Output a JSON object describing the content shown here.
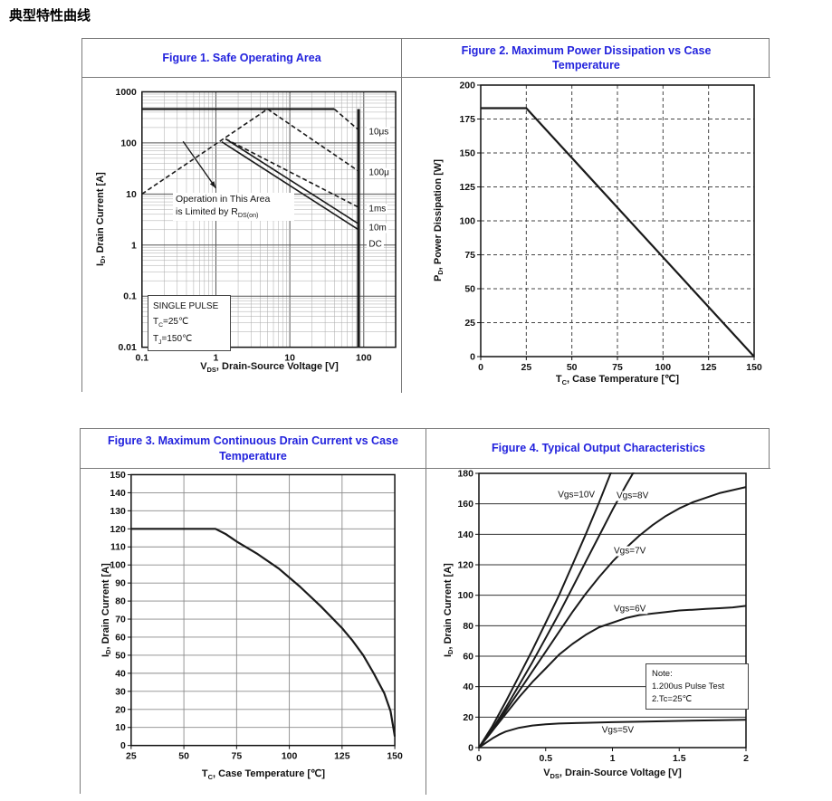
{
  "page": {
    "heading": "典型特性曲线"
  },
  "colors": {
    "title_blue": "#2222DD",
    "curve": "#1a1a1a",
    "grid_minor": "#aaaaaa",
    "grid_major": "#555555",
    "border": "#7a7a7a"
  },
  "chart_data": [
    {
      "id": "figure-1",
      "type": "line",
      "title": "Figure 1. Safe Operating Area",
      "x_axis": {
        "pre": "V",
        "sub": "DS",
        "post": ", Drain-Source Voltage [V]",
        "scale": "log",
        "min": 0.1,
        "max": 270,
        "ticks": [
          "0.1",
          "1",
          "10",
          "100"
        ],
        "grid": "log"
      },
      "y_axis": {
        "pre": "I",
        "sub": "D",
        "post": ", Drain Current [A]",
        "scale": "log",
        "min": 0.01,
        "max": 1000,
        "ticks": [
          "1000",
          "100",
          "10",
          "1",
          "0.1",
          "0.01"
        ],
        "grid": "log"
      },
      "tick_marks": false,
      "series": [
        {
          "name": "rds-on-limit",
          "dash": true,
          "width": 1.6,
          "points": [
            [
              0.1,
              10
            ],
            [
              5,
              460
            ]
          ]
        },
        {
          "name": "current-limit-10us",
          "dash": false,
          "width": 2.2,
          "points": [
            [
              0.1,
              460
            ],
            [
              40,
              460
            ]
          ]
        },
        {
          "name": "10us-pulse",
          "dash": true,
          "width": 1.6,
          "points": [
            [
              40,
              460
            ],
            [
              85,
              180
            ]
          ]
        },
        {
          "name": "100us-pulse",
          "dash": true,
          "width": 1.6,
          "points": [
            [
              5,
              460
            ],
            [
              85,
              28
            ]
          ]
        },
        {
          "name": "1ms-pulse",
          "dash": true,
          "width": 1.6,
          "points": [
            [
              1.35,
              120
            ],
            [
              85,
              5.5
            ]
          ]
        },
        {
          "name": "10ms-pulse",
          "dash": false,
          "width": 1.6,
          "points": [
            [
              1.35,
              120
            ],
            [
              85,
              2.6
            ]
          ]
        },
        {
          "name": "dc",
          "dash": false,
          "width": 1.6,
          "points": [
            [
              1.2,
              105
            ],
            [
              85,
              2.0
            ]
          ]
        },
        {
          "name": "breakdown-85v",
          "dash": false,
          "width": 3,
          "points": [
            [
              85,
              460
            ],
            [
              85,
              0.01
            ]
          ]
        }
      ],
      "curve_labels": [
        {
          "text": "10μs",
          "x": 108,
          "y": 160,
          "anchor": "left"
        },
        {
          "text": "100μ",
          "x": 108,
          "y": 26,
          "anchor": "left"
        },
        {
          "text": "1ms",
          "x": 108,
          "y": 5,
          "anchor": "left"
        },
        {
          "text": "10m",
          "x": 108,
          "y": 2.15,
          "anchor": "left"
        },
        {
          "text": "DC",
          "x": 108,
          "y": 1.05,
          "anchor": "left"
        }
      ],
      "annotations": {
        "operation": {
          "line1": "Operation in This Area",
          "line2_pre": "is Limited by R",
          "line2_sub": "DS(on)"
        },
        "single_pulse": {
          "line1": "SINGLE PULSE",
          "line2_pre": "T",
          "line2_sub": "C",
          "line2_post": "=25℃",
          "line3_pre": "T",
          "line3_sub": "J",
          "line3_post": "=150℃"
        },
        "arrow": {
          "from": [
            0.36,
            107
          ],
          "to": [
            1.0,
            13
          ]
        }
      }
    },
    {
      "id": "figure-2",
      "type": "line",
      "title": "Figure 2. Maximum Power Dissipation vs Case Temperature",
      "x_axis": {
        "pre": "T",
        "sub": "C",
        "post": ", Case Temperature [℃]",
        "scale": "linear",
        "min": 0,
        "max": 150,
        "ticks": [
          "0",
          "25",
          "50",
          "75",
          "100",
          "125",
          "150"
        ],
        "grid": "dashed",
        "grid_color": "#444444"
      },
      "y_axis": {
        "pre": "P",
        "sub": "D",
        "post": ", Power Dissipation [W]",
        "scale": "linear",
        "min": 0,
        "max": 200,
        "ticks": [
          "0",
          "25",
          "50",
          "75",
          "100",
          "125",
          "150",
          "175",
          "200"
        ],
        "grid": "dashed",
        "grid_color": "#444444"
      },
      "series": [
        {
          "name": "max-power-dissipation",
          "dash": false,
          "width": 2.2,
          "points": [
            [
              0,
              183
            ],
            [
              25,
              183
            ],
            [
              150,
              0
            ]
          ]
        }
      ]
    },
    {
      "id": "figure-3",
      "type": "line",
      "title": "Figure 3. Maximum Continuous Drain Current vs Case Temperature",
      "x_axis": {
        "pre": "T",
        "sub": "C",
        "post": ", Case Temperature [℃]",
        "scale": "linear",
        "min": 25,
        "max": 150,
        "ticks": [
          "25",
          "50",
          "75",
          "100",
          "125",
          "150"
        ],
        "grid": "solid",
        "grid_color": "#8a8a8a",
        "grid_width": 0.9
      },
      "y_axis": {
        "pre": "I",
        "sub": "D",
        "post": ", Drain Current [A]",
        "scale": "linear",
        "min": 0,
        "max": 150,
        "ticks": [
          "0",
          "10",
          "20",
          "30",
          "40",
          "50",
          "60",
          "70",
          "80",
          "90",
          "100",
          "110",
          "120",
          "130",
          "140",
          "150"
        ],
        "grid": "solid",
        "grid_color": "#8a8a8a",
        "grid_width": 0.9
      },
      "series": [
        {
          "name": "max-continuous-drain-current",
          "dash": false,
          "width": 2.2,
          "points": [
            [
              25,
              120
            ],
            [
              65,
              120
            ],
            [
              70,
              117
            ],
            [
              75,
              113
            ],
            [
              85,
              106
            ],
            [
              95,
              98
            ],
            [
              105,
              88
            ],
            [
              115,
              77
            ],
            [
              125,
              65
            ],
            [
              130,
              58
            ],
            [
              135,
              50
            ],
            [
              140,
              40
            ],
            [
              145,
              29
            ],
            [
              148,
              19
            ],
            [
              150,
              5
            ]
          ]
        }
      ]
    },
    {
      "id": "figure-4",
      "type": "line",
      "title": "Figure 4. Typical Output Characteristics",
      "x_axis": {
        "pre": "V",
        "sub": "DS",
        "post": ", Drain-Source Voltage [V]",
        "scale": "linear",
        "min": 0,
        "max": 2,
        "ticks": [
          "0",
          "0.5",
          "1",
          "1.5",
          "2"
        ],
        "grid": "none"
      },
      "y_axis": {
        "pre": "I",
        "sub": "D",
        "post": ", Drain Current [A]",
        "scale": "linear",
        "min": 0,
        "max": 180,
        "ticks": [
          "0",
          "20",
          "40",
          "60",
          "80",
          "100",
          "120",
          "140",
          "160",
          "180"
        ],
        "grid": "solid",
        "grid_color": "#333333",
        "grid_width": 1
      },
      "series": [
        {
          "name": "vgs-10v",
          "dash": false,
          "width": 2,
          "points": [
            [
              0,
              0
            ],
            [
              0.1,
              14
            ],
            [
              0.2,
              30
            ],
            [
              0.3,
              47
            ],
            [
              0.4,
              64
            ],
            [
              0.5,
              82
            ],
            [
              0.6,
              100
            ],
            [
              0.7,
              120
            ],
            [
              0.8,
              140
            ],
            [
              0.9,
              161
            ],
            [
              1.0,
              183
            ]
          ]
        },
        {
          "name": "vgs-8v",
          "dash": false,
          "width": 2,
          "points": [
            [
              0,
              0
            ],
            [
              0.1,
              12
            ],
            [
              0.2,
              26
            ],
            [
              0.3,
              41
            ],
            [
              0.4,
              56
            ],
            [
              0.5,
              72
            ],
            [
              0.6,
              88
            ],
            [
              0.7,
              105
            ],
            [
              0.8,
              122
            ],
            [
              0.9,
              139
            ],
            [
              1.0,
              156
            ],
            [
              1.1,
              172
            ],
            [
              1.16,
              181
            ]
          ]
        },
        {
          "name": "vgs-7v",
          "dash": false,
          "width": 2,
          "points": [
            [
              0,
              0
            ],
            [
              0.1,
              11
            ],
            [
              0.2,
              24
            ],
            [
              0.3,
              37
            ],
            [
              0.4,
              50
            ],
            [
              0.5,
              63
            ],
            [
              0.6,
              76
            ],
            [
              0.7,
              89
            ],
            [
              0.8,
              101
            ],
            [
              0.9,
              112
            ],
            [
              1.0,
              122
            ],
            [
              1.1,
              131
            ],
            [
              1.2,
              139
            ],
            [
              1.3,
              146
            ],
            [
              1.4,
              152
            ],
            [
              1.5,
              157
            ],
            [
              1.6,
              161
            ],
            [
              1.7,
              164
            ],
            [
              1.8,
              167
            ],
            [
              1.9,
              169
            ],
            [
              2.0,
              171
            ]
          ]
        },
        {
          "name": "vgs-6v",
          "dash": false,
          "width": 2,
          "points": [
            [
              0,
              0
            ],
            [
              0.1,
              11
            ],
            [
              0.2,
              22
            ],
            [
              0.3,
              33
            ],
            [
              0.4,
              43
            ],
            [
              0.5,
              52
            ],
            [
              0.6,
              61
            ],
            [
              0.7,
              68
            ],
            [
              0.8,
              74
            ],
            [
              0.9,
              79
            ],
            [
              1.0,
              82
            ],
            [
              1.1,
              85
            ],
            [
              1.2,
              87
            ],
            [
              1.3,
              88
            ],
            [
              1.4,
              89
            ],
            [
              1.5,
              90
            ],
            [
              1.6,
              90.5
            ],
            [
              1.7,
              91
            ],
            [
              1.8,
              91.5
            ],
            [
              1.9,
              92
            ],
            [
              2.0,
              93
            ]
          ]
        },
        {
          "name": "vgs-5v",
          "dash": false,
          "width": 2,
          "points": [
            [
              0,
              0
            ],
            [
              0.05,
              3
            ],
            [
              0.1,
              6
            ],
            [
              0.15,
              8.5
            ],
            [
              0.2,
              10.5
            ],
            [
              0.3,
              13
            ],
            [
              0.4,
              14.5
            ],
            [
              0.5,
              15.3
            ],
            [
              0.6,
              15.8
            ],
            [
              0.8,
              16.3
            ],
            [
              1.0,
              16.7
            ],
            [
              1.2,
              17
            ],
            [
              1.5,
              17.5
            ],
            [
              1.8,
              18
            ],
            [
              2.0,
              18.3
            ]
          ]
        }
      ],
      "curve_labels": [
        {
          "text": "Vgs=10V",
          "x": 0.73,
          "y": 166,
          "anchor": "center"
        },
        {
          "text": "Vgs=8V",
          "x": 1.15,
          "y": 165,
          "anchor": "center"
        },
        {
          "text": "Vgs=7V",
          "x": 1.13,
          "y": 129,
          "anchor": "center"
        },
        {
          "text": "Vgs=6V",
          "x": 1.13,
          "y": 91,
          "anchor": "center"
        },
        {
          "text": "Vgs=5V",
          "x": 1.04,
          "y": 11.5,
          "anchor": "center"
        }
      ],
      "annotations": {
        "note": {
          "line1": "Note:",
          "line2": "1.200us Pulse Test",
          "line3": "2.Tc=25℃"
        }
      }
    }
  ]
}
